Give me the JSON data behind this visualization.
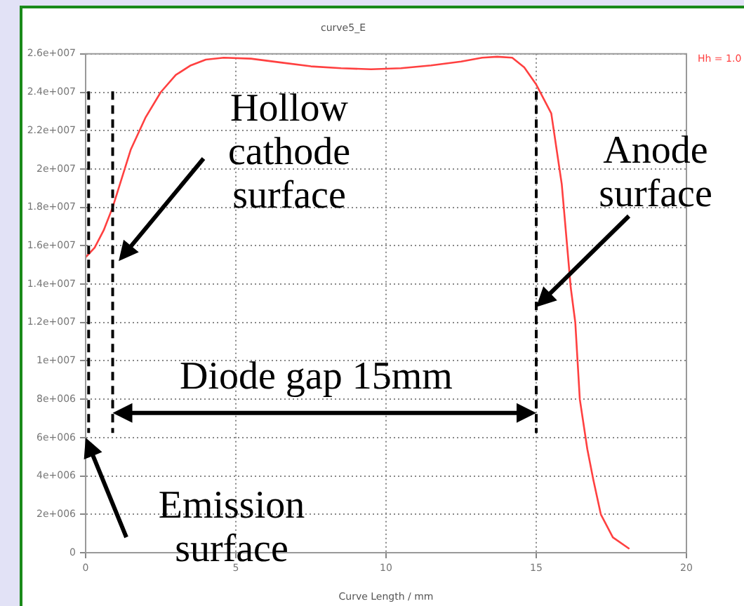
{
  "chart_data": {
    "type": "line",
    "title": "curve5_E",
    "xlabel": "Curve Length / mm",
    "x": [
      0,
      0.3,
      0.6,
      0.9,
      1.2,
      1.5,
      2,
      2.5,
      3,
      3.5,
      4,
      4.6,
      5.5,
      6.5,
      7.5,
      8.5,
      9.5,
      10.5,
      11.5,
      12.5,
      13.2,
      13.7,
      14.2,
      14.6,
      15,
      15.5,
      15.85,
      16.15,
      16.3,
      16.45,
      16.7,
      16.9,
      17.15,
      17.55,
      18.1
    ],
    "series": [
      {
        "color": "#ff4040",
        "values": [
          15400000,
          15900000,
          16800000,
          18000000,
          19500000,
          21000000,
          22700000,
          24000000,
          24900000,
          25400000,
          25700000,
          25800000,
          25750000,
          25550000,
          25350000,
          25250000,
          25200000,
          25250000,
          25400000,
          25600000,
          25800000,
          25850000,
          25800000,
          25300000,
          24400000,
          22900000,
          19200000,
          13800000,
          12000000,
          8000000,
          5400000,
          3800000,
          2000000,
          800000,
          200000
        ]
      }
    ],
    "xlim": [
      0,
      20
    ],
    "xticks": [
      0,
      5,
      10,
      15,
      20
    ],
    "ylim": [
      0,
      26000000
    ],
    "yticks": [
      0,
      {
        "value": 2000000,
        "label": "2e+006"
      },
      {
        "value": 4000000,
        "label": "4e+006"
      },
      {
        "value": 6000000,
        "label": "6e+006"
      },
      {
        "value": 8000000,
        "label": "8e+006"
      },
      {
        "value": 10000000,
        "label": "1e+007"
      },
      {
        "value": 12000000,
        "label": "1.2e+007"
      },
      {
        "value": 14000000,
        "label": "1.4e+007"
      },
      {
        "value": 16000000,
        "label": "1.6e+007"
      },
      {
        "value": 18000000,
        "label": "1.8e+007"
      },
      {
        "value": 20000000,
        "label": "2e+007"
      },
      {
        "value": 22000000,
        "label": "2.2e+007"
      },
      {
        "value": 24000000,
        "label": "2.4e+007"
      },
      {
        "value": 26000000,
        "label": "2.6e+007"
      }
    ],
    "grid": true,
    "marker": "none",
    "line_style": "solid",
    "legend": false,
    "ref_lines": [
      {
        "axis": "x",
        "value": 0.1,
        "color": "#000000",
        "line_style": "dashed"
      },
      {
        "axis": "x",
        "value": 0.9,
        "color": "#000000",
        "line_style": "dashed"
      },
      {
        "axis": "x",
        "value": 15,
        "color": "#000000",
        "line_style": "dashed"
      }
    ],
    "annotations": [
      {
        "text": "Hollow cathode surface",
        "x": 1.1,
        "y": 15200000
      },
      {
        "text": "Anode surface",
        "x": 15,
        "y": 12800000
      },
      "Diode gap 15mm",
      {
        "text": "Emission surface",
        "x": 0,
        "y": 6000000
      },
      "Hh = 1.0"
    ]
  }
}
